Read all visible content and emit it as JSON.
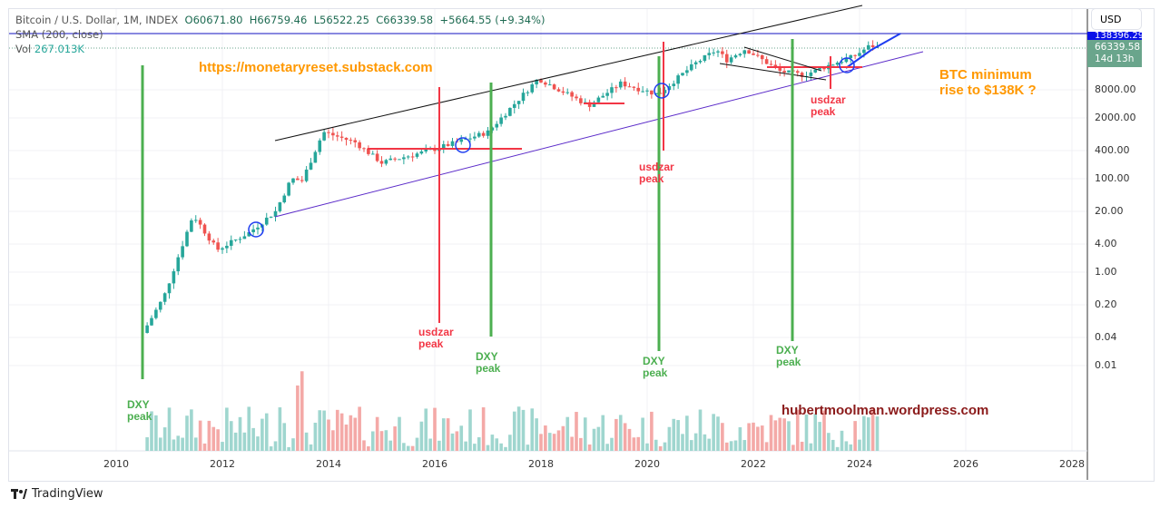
{
  "header": {
    "symbol": "Bitcoin / U.S. Dollar, 1M, INDEX",
    "open": "O60671.80",
    "high": "H66759.46",
    "low": "L56522.25",
    "close": "C66339.58",
    "change": "+5664.55 (+9.34%)",
    "sma": "SMA (200, close)",
    "vol_label": "Vol",
    "vol_value": "267.013K"
  },
  "currency": "USD",
  "price_label": {
    "price": "66339.58",
    "countdown": "14d 13h"
  },
  "target_label": "138396.29",
  "annotations": {
    "url": "https://monetaryreset.substack.com",
    "blog": "hubertmoolman.wordpress.com",
    "btc_line1": "BTC minimum",
    "btc_line2": "rise to $138K ?",
    "dxy": "DXY",
    "peak": "peak",
    "usdzar": "usdzar"
  },
  "branding": "TradingView",
  "colors": {
    "up": "#26a69a",
    "down": "#ef5350",
    "orange": "#ff9800",
    "green": "#4caf50",
    "red": "#f23645",
    "purple": "#5b2bc9",
    "blue": "#1e3df0",
    "maroon": "#8b1a1a"
  },
  "chart_data": {
    "type": "candlestick",
    "title": "Bitcoin / U.S. Dollar, 1M, INDEX",
    "yscale": "log",
    "yticks": [
      "8000.00",
      "2000.00",
      "400.00",
      "100.00",
      "20.00",
      "4.00",
      "1.00",
      "0.20",
      "0.04",
      "0.01"
    ],
    "ytick_values": [
      8000,
      2000,
      400,
      100,
      20,
      4,
      1,
      0.2,
      0.04,
      0.01
    ],
    "xticks": [
      "2010",
      "2012",
      "2014",
      "2016",
      "2018",
      "2020",
      "2022",
      "2024",
      "2026",
      "2028"
    ],
    "xtick_values": [
      2010,
      2012,
      2014,
      2016,
      2018,
      2020,
      2022,
      2024,
      2026,
      2028
    ],
    "price_anchors": [
      [
        2010.5,
        0.05
      ],
      [
        2010.9,
        0.3
      ],
      [
        2011.45,
        17
      ],
      [
        2011.9,
        3
      ],
      [
        2012.5,
        7
      ],
      [
        2013.0,
        20
      ],
      [
        2013.3,
        100
      ],
      [
        2013.5,
        90
      ],
      [
        2013.9,
        1000
      ],
      [
        2014.5,
        600
      ],
      [
        2015.0,
        220
      ],
      [
        2015.9,
        400
      ],
      [
        2016.5,
        650
      ],
      [
        2017.0,
        1000
      ],
      [
        2017.95,
        14000
      ],
      [
        2018.9,
        3700
      ],
      [
        2019.5,
        11000
      ],
      [
        2020.2,
        6400
      ],
      [
        2020.9,
        29000
      ],
      [
        2021.3,
        57000
      ],
      [
        2021.5,
        35000
      ],
      [
        2021.85,
        60000
      ],
      [
        2022.5,
        20000
      ],
      [
        2022.95,
        16500
      ],
      [
        2023.5,
        29000
      ],
      [
        2023.9,
        42000
      ],
      [
        2024.2,
        71000
      ],
      [
        2024.35,
        66339.58
      ]
    ],
    "last_close": 66339.58
  }
}
